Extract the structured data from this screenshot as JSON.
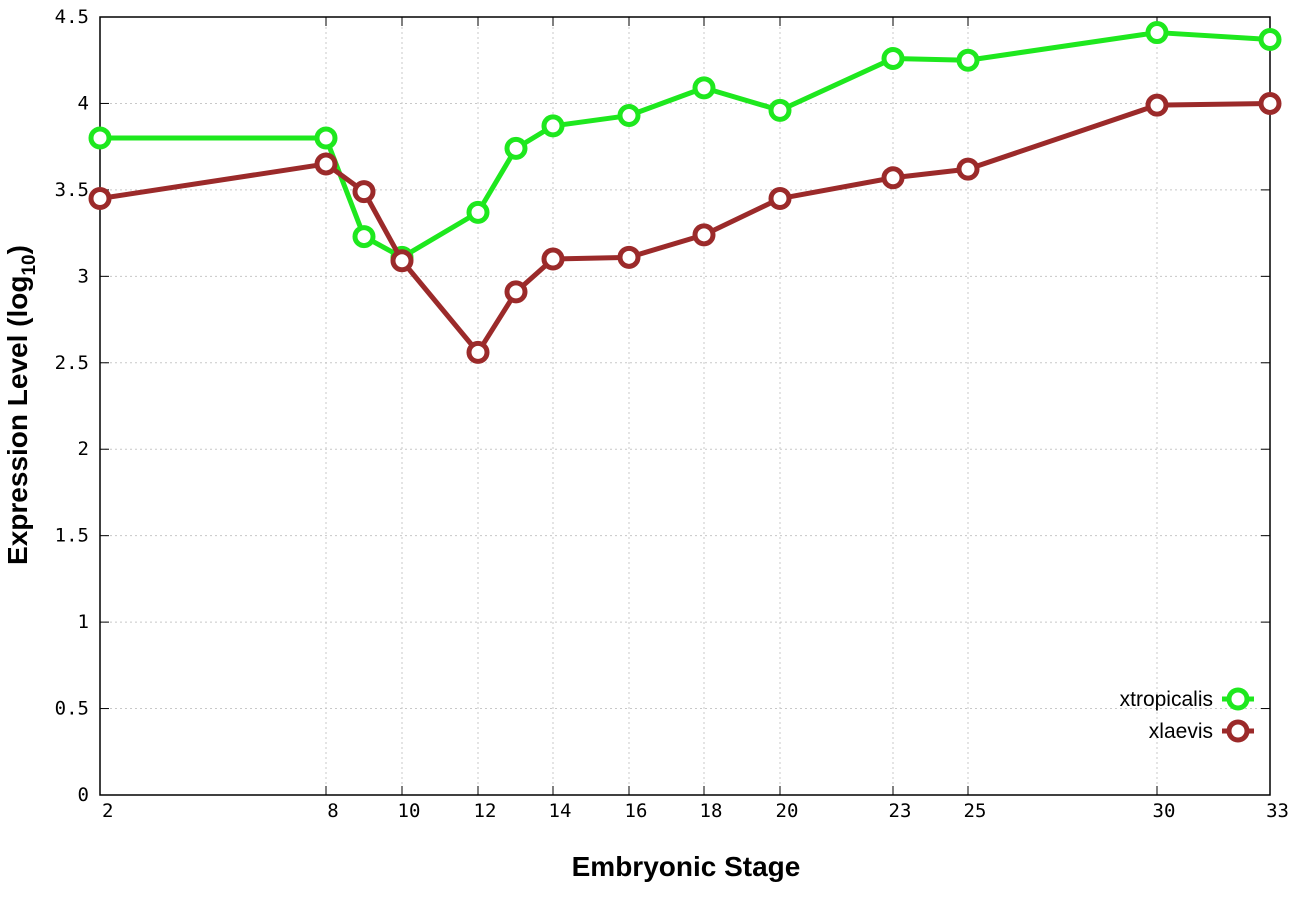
{
  "chart_data": {
    "type": "line",
    "xlabel": "Embryonic Stage",
    "ylabel_main": "Expression Level (log",
    "ylabel_sub": "10",
    "ylabel_close": ")",
    "ylim": [
      0,
      4.5
    ],
    "y_ticks": [
      "0",
      "0.5",
      "1",
      "1.5",
      "2",
      "2.5",
      "3",
      "3.5",
      "4",
      "4.5"
    ],
    "x_ticks": [
      "2",
      "8",
      "10",
      "12",
      "14",
      "16",
      "18",
      "20",
      "23",
      "25",
      "30",
      "33"
    ],
    "grid": true,
    "legend_position": "bottom-right",
    "categories": [
      "2",
      "8",
      "9",
      "10",
      "12",
      "13",
      "14",
      "16",
      "18",
      "20",
      "23",
      "25",
      "30",
      "33"
    ],
    "series": [
      {
        "name": "xtropicalis",
        "color": "#1ee81e",
        "values": [
          3.8,
          3.8,
          3.23,
          3.11,
          3.37,
          3.74,
          3.87,
          3.93,
          4.09,
          3.96,
          4.26,
          4.25,
          4.41,
          4.37
        ]
      },
      {
        "name": "xlaevis",
        "color": "#9b2a2a",
        "values": [
          3.45,
          3.65,
          3.49,
          3.09,
          2.56,
          2.91,
          3.1,
          3.11,
          3.24,
          3.45,
          3.57,
          3.62,
          3.99,
          4.0
        ]
      }
    ]
  }
}
